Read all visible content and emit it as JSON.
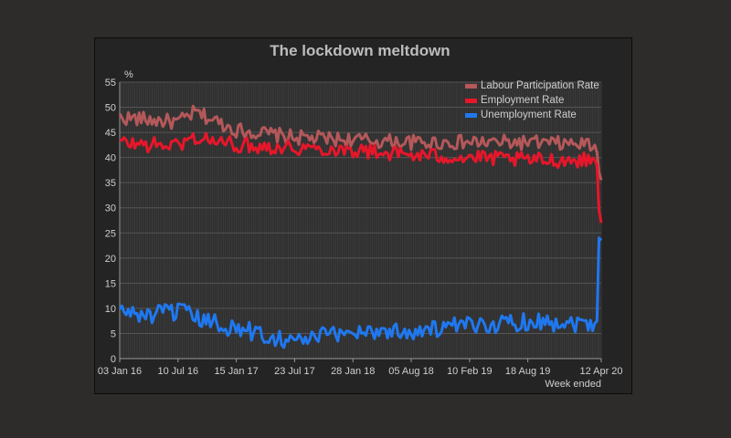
{
  "chart_data": {
    "type": "line",
    "title": "The lockdown meltdown",
    "ylabel": "%",
    "xlabel": "Week ended",
    "ylim": [
      0,
      55
    ],
    "yticks": [
      0,
      5,
      10,
      15,
      20,
      25,
      30,
      35,
      40,
      45,
      50,
      55
    ],
    "x_tick_labels": [
      "03 Jan 16",
      "10 Jul 16",
      "15 Jan 17",
      "23 Jul 17",
      "28 Jan 18",
      "05 Aug 18",
      "10 Feb 19",
      "18 Aug 19",
      "12 Apr 20"
    ],
    "x_range": [
      "03 Jan 16",
      "12 Apr 20"
    ],
    "grid": true,
    "legend_position": "top-right",
    "series": [
      {
        "name": "Labour Participation Rate",
        "color": "#b5585a",
        "points": [
          [
            "03 Jan 16",
            48
          ],
          [
            "10 Apr 16",
            47.5
          ],
          [
            "10 Jul 16",
            47
          ],
          [
            "04 Sep 16",
            49
          ],
          [
            "15 Jan 17",
            45.5
          ],
          [
            "23 Jul 17",
            44
          ],
          [
            "28 Jan 18",
            43.5
          ],
          [
            "05 Aug 18",
            43
          ],
          [
            "10 Feb 19",
            43
          ],
          [
            "18 Aug 19",
            43
          ],
          [
            "22 Mar 20",
            42.5
          ],
          [
            "29 Mar 20",
            41
          ],
          [
            "05 Apr 20",
            37
          ],
          [
            "12 Apr 20",
            35.5
          ]
        ]
      },
      {
        "name": "Employment Rate",
        "color": "#e8162a",
        "points": [
          [
            "03 Jan 16",
            43
          ],
          [
            "10 Apr 16",
            42.5
          ],
          [
            "10 Jul 16",
            42.5
          ],
          [
            "04 Sep 16",
            44
          ],
          [
            "15 Jan 17",
            42.5
          ],
          [
            "23 Jul 17",
            42
          ],
          [
            "28 Jan 18",
            41.5
          ],
          [
            "05 Aug 18",
            40.5
          ],
          [
            "10 Feb 19",
            40
          ],
          [
            "18 Aug 19",
            39.5
          ],
          [
            "22 Mar 20",
            39.5
          ],
          [
            "29 Mar 20",
            38.5
          ],
          [
            "05 Apr 20",
            29.5
          ],
          [
            "12 Apr 20",
            27
          ]
        ]
      },
      {
        "name": "Unemployment Rate",
        "color": "#1f78f0",
        "points": [
          [
            "03 Jan 16",
            9.5
          ],
          [
            "10 Apr 16",
            8.5
          ],
          [
            "10 Jul 16",
            9.5
          ],
          [
            "04 Sep 16",
            8
          ],
          [
            "15 Jan 17",
            6
          ],
          [
            "23 Jul 17",
            3.5
          ],
          [
            "28 Jan 18",
            5.5
          ],
          [
            "05 Aug 18",
            5.5
          ],
          [
            "10 Feb 19",
            6.5
          ],
          [
            "18 Aug 19",
            7.5
          ],
          [
            "22 Mar 20",
            7
          ],
          [
            "29 Mar 20",
            7.5
          ],
          [
            "05 Apr 20",
            24
          ],
          [
            "12 Apr 20",
            23.5
          ]
        ]
      }
    ]
  }
}
